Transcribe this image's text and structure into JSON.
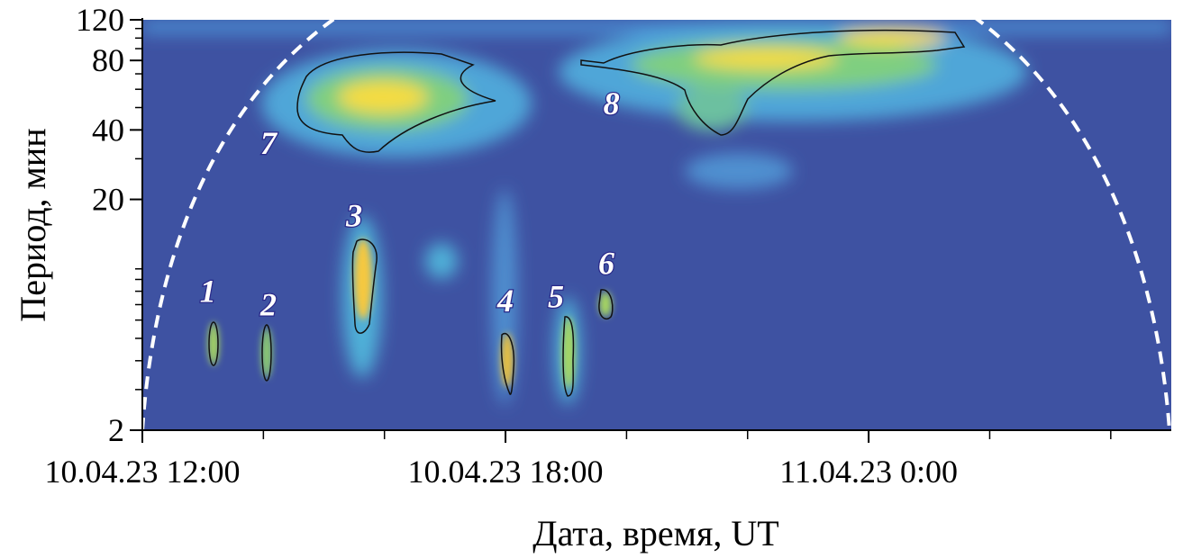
{
  "chart_data": {
    "type": "wavelet-spectrum",
    "x_label": "Дата, время, UT",
    "y_label": "Период, мин",
    "xlim": [
      "2023-04-10T12:00",
      "2023-04-11T05:00"
    ],
    "xticks": [
      {
        "value": "2023-04-10T12:00",
        "label": "10.04.23 12:00"
      },
      {
        "value": "2023-04-10T18:00",
        "label": "10.04.23 18:00"
      },
      {
        "value": "2023-04-11T00:00",
        "label": "11.04.23 0:00"
      }
    ],
    "xticks_minor": [
      "2023-04-10T14:00",
      "2023-04-10T16:00",
      "2023-04-10T20:00",
      "2023-04-10T22:00",
      "2023-04-11T02:00",
      "2023-04-11T04:00"
    ],
    "ylim": [
      2,
      120
    ],
    "log_y": true,
    "yticks": [
      2,
      20,
      40,
      80,
      120
    ],
    "yticks_minor": [
      3,
      4,
      5,
      6,
      7,
      8,
      9,
      10,
      30,
      50,
      60,
      70,
      90,
      100,
      110
    ],
    "annotations": [
      {
        "text": "1",
        "x": "2023-04-10T13:05",
        "y": 8
      },
      {
        "text": "2",
        "x": "2023-04-10T14:05",
        "y": 7
      },
      {
        "text": "3",
        "x": "2023-04-10T15:30",
        "y": 17
      },
      {
        "text": "4",
        "x": "2023-04-10T18:00",
        "y": 7.3
      },
      {
        "text": "5",
        "x": "2023-04-10T18:50",
        "y": 7.6
      },
      {
        "text": "6",
        "x": "2023-04-10T19:40",
        "y": 10.6
      },
      {
        "text": "7",
        "x": "2023-04-10T14:05",
        "y": 35
      },
      {
        "text": "8",
        "x": "2023-04-10T19:45",
        "y": 52
      }
    ]
  }
}
